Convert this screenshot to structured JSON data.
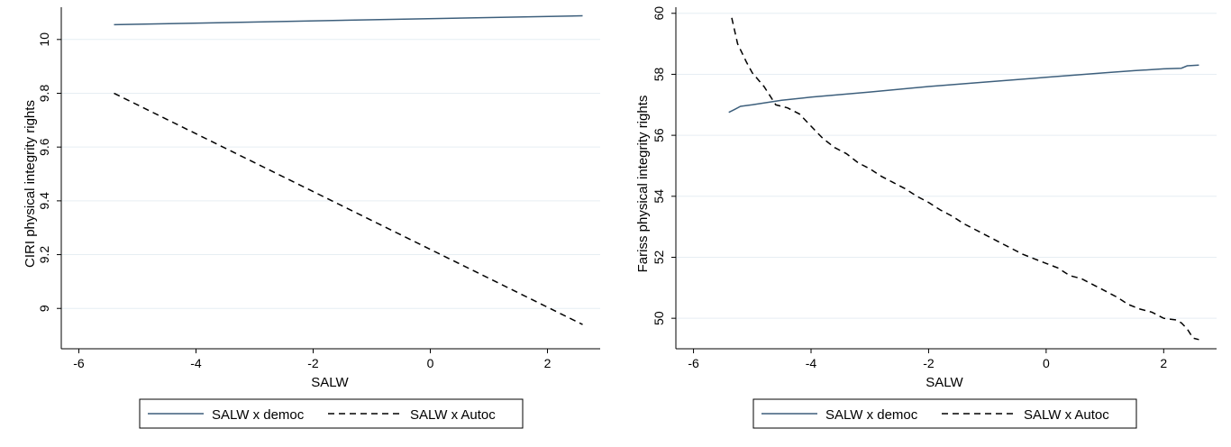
{
  "chart_data": [
    {
      "type": "line",
      "xlabel": "SALW",
      "ylabel": "CIRI physical integrity rights",
      "xlim": [
        -6.3,
        2.9
      ],
      "ylim": [
        8.85,
        10.12
      ],
      "xticks": [
        -6,
        -4,
        -2,
        0,
        2
      ],
      "yticks": [
        9,
        9.2,
        9.4,
        9.6,
        9.8,
        10
      ],
      "ytick_labels": [
        "9",
        "9.2",
        "9.4",
        "9.6",
        "9.8",
        "10"
      ],
      "grid": true,
      "legend_position": "bottom",
      "series": [
        {
          "name": "SALW x democ",
          "style": "solid",
          "color": "#3d5f7c",
          "x": [
            -5.4,
            2.6
          ],
          "y": [
            10.055,
            10.088
          ]
        },
        {
          "name": "SALW x Autoc",
          "style": "dashed",
          "color": "#000000",
          "x": [
            -5.4,
            2.6
          ],
          "y": [
            9.8,
            8.94
          ]
        }
      ]
    },
    {
      "type": "line",
      "xlabel": "SALW",
      "ylabel": "Fariss physical integrity rights",
      "xlim": [
        -6.3,
        2.9
      ],
      "ylim": [
        49.0,
        60.2
      ],
      "xticks": [
        -6,
        -4,
        -2,
        0,
        2
      ],
      "yticks": [
        50,
        52,
        54,
        56,
        58,
        60
      ],
      "ytick_labels": [
        "50",
        "52",
        "54",
        "56",
        "58",
        "60"
      ],
      "grid": true,
      "legend_position": "bottom",
      "series": [
        {
          "name": "SALW x democ",
          "style": "solid",
          "color": "#3d5f7c",
          "x": [
            -5.4,
            -5.3,
            -5.2,
            -5.0,
            -4.5,
            -4.0,
            -3.0,
            -2.0,
            -1.0,
            0.0,
            1.0,
            1.5,
            2.0,
            2.3,
            2.4,
            2.6
          ],
          "y": [
            56.75,
            56.85,
            56.95,
            57.0,
            57.15,
            57.25,
            57.42,
            57.6,
            57.75,
            57.9,
            58.05,
            58.12,
            58.18,
            58.2,
            58.28,
            58.3
          ]
        },
        {
          "name": "SALW x Autoc",
          "style": "dashed",
          "color": "#000000",
          "x": [
            -5.35,
            -5.25,
            -5.1,
            -5.0,
            -4.8,
            -4.6,
            -4.4,
            -4.2,
            -4.0,
            -3.8,
            -3.6,
            -3.4,
            -3.2,
            -3.0,
            -2.8,
            -2.6,
            -2.4,
            -2.2,
            -2.0,
            -1.8,
            -1.6,
            -1.4,
            -1.2,
            -1.0,
            -0.8,
            -0.6,
            -0.4,
            -0.2,
            0.0,
            0.2,
            0.4,
            0.6,
            0.8,
            1.0,
            1.2,
            1.4,
            1.6,
            1.8,
            2.0,
            2.2,
            2.3,
            2.4,
            2.5,
            2.6
          ],
          "y": [
            59.85,
            59.0,
            58.4,
            58.05,
            57.6,
            57.0,
            56.9,
            56.7,
            56.3,
            55.9,
            55.6,
            55.4,
            55.1,
            54.9,
            54.65,
            54.45,
            54.25,
            54.0,
            53.8,
            53.55,
            53.35,
            53.1,
            52.9,
            52.7,
            52.5,
            52.3,
            52.1,
            51.95,
            51.8,
            51.65,
            51.4,
            51.3,
            51.1,
            50.9,
            50.7,
            50.45,
            50.3,
            50.2,
            50.0,
            49.95,
            49.85,
            49.65,
            49.35,
            49.3
          ]
        }
      ]
    }
  ]
}
